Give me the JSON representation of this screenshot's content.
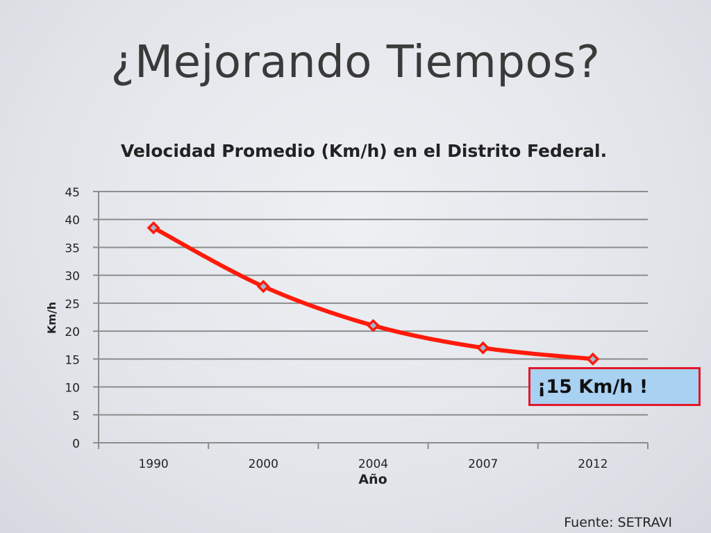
{
  "slide": {
    "title": "¿Mejorando Tiempos?",
    "source": "Fuente: SETRAVI"
  },
  "callout": {
    "text": "¡15 Km/h !",
    "background": "#a9d1f2",
    "border_color": "#e3172a"
  },
  "chart_data": {
    "type": "line",
    "title": "Velocidad Promedio (Km/h) en el Distrito Federal.",
    "xlabel": "Año",
    "ylabel": "Km/h",
    "categories": [
      "1990",
      "2000",
      "2004",
      "2007",
      "2012"
    ],
    "series": [
      {
        "values": [
          38.5,
          28,
          21,
          17,
          15
        ],
        "color": "#ff1a0a",
        "marker": "diamond"
      }
    ],
    "ylim": [
      0,
      45
    ],
    "yticks": [
      0,
      5,
      10,
      15,
      20,
      25,
      30,
      35,
      40,
      45
    ],
    "grid": true,
    "legend": "none"
  }
}
